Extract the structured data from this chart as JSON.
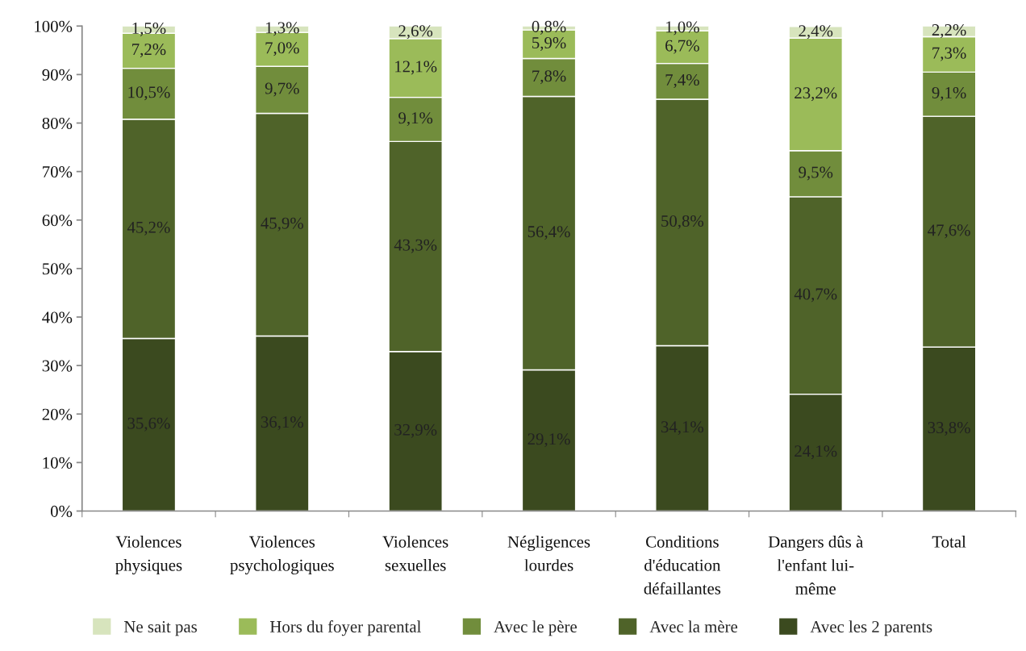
{
  "chart_data": {
    "type": "bar",
    "stacked": true,
    "categories": [
      "Violences\nphysiques",
      "Violences\npsychologiques",
      "Violences\nsexuelles",
      "Négligences\nlourdes",
      "Conditions\nd'éducation\ndéfaillantes",
      "Dangers dûs à\nl'enfant lui-\nmême",
      "Total"
    ],
    "series": [
      {
        "name": "Avec les 2 parents",
        "color": "#3b4a1f",
        "values": [
          35.6,
          36.1,
          32.9,
          29.1,
          34.1,
          24.1,
          33.8
        ],
        "value_labels": [
          "35,6%",
          "36,1%",
          "32,9%",
          "29,1%",
          "34,1%",
          "24,1%",
          "33,8%"
        ]
      },
      {
        "name": "Avec la mère",
        "color": "#4f6329",
        "values": [
          45.2,
          45.9,
          43.3,
          56.4,
          50.8,
          40.7,
          47.6
        ],
        "value_labels": [
          "45,2%",
          "45,9%",
          "43,3%",
          "56,4%",
          "50,8%",
          "40,7%",
          "47,6%"
        ]
      },
      {
        "name": "Avec le père",
        "color": "#718d3c",
        "values": [
          10.5,
          9.7,
          9.1,
          7.8,
          7.4,
          9.5,
          9.1
        ],
        "value_labels": [
          "10,5%",
          "9,7%",
          "9,1%",
          "7,8%",
          "7,4%",
          "9,5%",
          "9,1%"
        ]
      },
      {
        "name": "Hors du foyer parental",
        "color": "#9bbb59",
        "values": [
          7.2,
          7.0,
          12.1,
          5.9,
          6.7,
          23.2,
          7.3
        ],
        "value_labels": [
          "7,2%",
          "7,0%",
          "12,1%",
          "5,9%",
          "6,7%",
          "23,2%",
          "7,3%"
        ]
      },
      {
        "name": "Ne sait pas",
        "color": "#d7e4bd",
        "values": [
          1.5,
          1.3,
          2.6,
          0.8,
          1.0,
          2.4,
          2.2
        ],
        "value_labels": [
          "1,5%",
          "1,3%",
          "2,6%",
          "0,8%",
          "1,0%",
          "2,4%",
          "2,2%"
        ]
      }
    ],
    "ylim": [
      0,
      100
    ],
    "yticks": [
      {
        "value": 0,
        "label": "0%"
      },
      {
        "value": 10,
        "label": "10%"
      },
      {
        "value": 20,
        "label": "20%"
      },
      {
        "value": 30,
        "label": "30%"
      },
      {
        "value": 40,
        "label": "40%"
      },
      {
        "value": 50,
        "label": "50%"
      },
      {
        "value": 60,
        "label": "60%"
      },
      {
        "value": 70,
        "label": "70%"
      },
      {
        "value": 80,
        "label": "80%"
      },
      {
        "value": 90,
        "label": "90%"
      },
      {
        "value": 100,
        "label": "100%"
      }
    ],
    "grid": false,
    "legend": "bottom"
  }
}
